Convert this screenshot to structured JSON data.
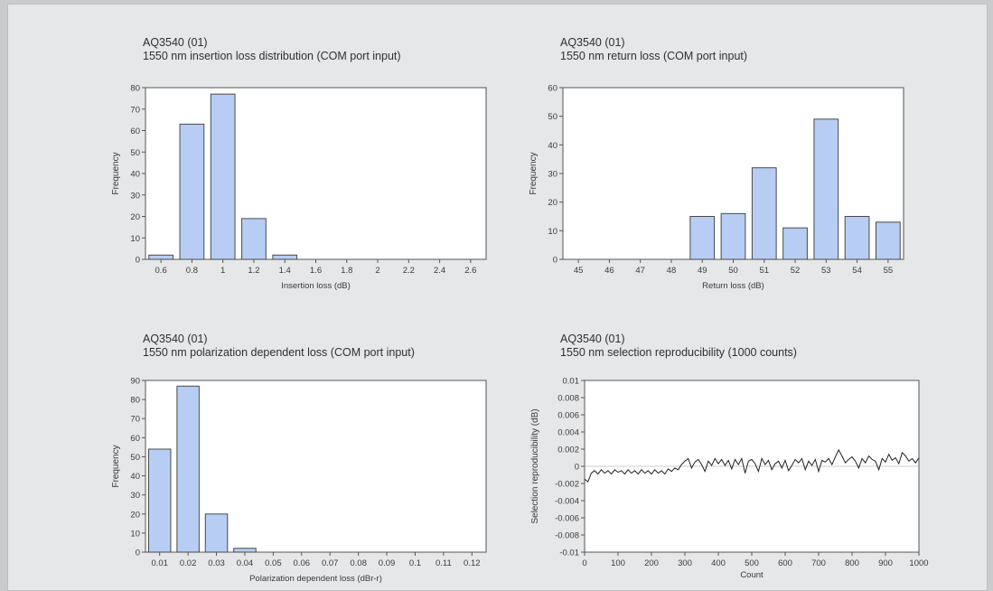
{
  "colors": {
    "bar_fill": "#b7cdf4",
    "bar_stroke": "#4a4a4a",
    "plot_bg": "#ffffff",
    "line": "#222222"
  },
  "chart_data": [
    {
      "type": "bar",
      "header": "AQ3540 (01)",
      "title": "1550 nm insertion loss distribution (COM port input)",
      "xlabel": "Insertion loss (dB)",
      "ylabel": "Frequency",
      "categories": [
        "0.6",
        "0.8",
        "1",
        "1.2",
        "1.4",
        "1.6",
        "1.8",
        "2",
        "2.2",
        "2.4",
        "2.6"
      ],
      "values": [
        2,
        63,
        77,
        19,
        2,
        0,
        0,
        0,
        0,
        0,
        0
      ],
      "ylim": [
        0,
        80
      ],
      "yticks": [
        "0",
        "10",
        "20",
        "30",
        "40",
        "50",
        "60",
        "70",
        "80"
      ],
      "grid": false
    },
    {
      "type": "bar",
      "header": "AQ3540 (01)",
      "title": "1550 nm return loss (COM port input)",
      "xlabel": "Return loss (dB)",
      "ylabel": "Frequency",
      "categories": [
        "45",
        "46",
        "47",
        "48",
        "49",
        "50",
        "51",
        "52",
        "53",
        "54",
        "55"
      ],
      "values": [
        0,
        0,
        0,
        0,
        15,
        16,
        32,
        11,
        49,
        15,
        13
      ],
      "ylim": [
        0,
        60
      ],
      "yticks": [
        "0",
        "10",
        "20",
        "30",
        "40",
        "50",
        "60"
      ],
      "grid": false
    },
    {
      "type": "bar",
      "header": "AQ3540 (01)",
      "title": "1550 nm polarization dependent loss  (COM port input)",
      "xlabel": "Polarization dependent loss (dBr-r)",
      "ylabel": "Frequency",
      "categories": [
        "0.01",
        "0.02",
        "0.03",
        "0.04",
        "0.05",
        "0.06",
        "0.07",
        "0.08",
        "0.09",
        "0.1",
        "0.11",
        "0.12"
      ],
      "values": [
        54,
        87,
        20,
        2,
        0,
        0,
        0,
        0,
        0,
        0,
        0,
        0
      ],
      "ylim": [
        0,
        90
      ],
      "yticks": [
        "0",
        "10",
        "20",
        "30",
        "40",
        "50",
        "60",
        "70",
        "80",
        "90"
      ],
      "grid": false
    },
    {
      "type": "line",
      "header": "AQ3540 (01)",
      "title": "1550 nm selection reproducibility (1000 counts)",
      "xlabel": "Count",
      "ylabel": "Selection reproducibility (dB)",
      "xlim": [
        0,
        1000
      ],
      "ylim": [
        -0.01,
        0.01
      ],
      "xticks": [
        "0",
        "100",
        "200",
        "300",
        "400",
        "500",
        "600",
        "700",
        "800",
        "900",
        "1000"
      ],
      "yticks": [
        "-0.01",
        "-0.008",
        "-0.006",
        "-0.004",
        "-0.002",
        "0",
        "0.002",
        "0.004",
        "0.006",
        "0.008",
        "0.01"
      ],
      "series": [
        {
          "x": [
            0,
            10,
            20,
            30,
            40,
            50,
            60,
            70,
            80,
            90,
            100,
            110,
            120,
            130,
            140,
            150,
            160,
            170,
            180,
            190,
            200,
            210,
            220,
            230,
            240,
            250,
            260,
            270,
            280,
            290,
            300,
            310,
            320,
            330,
            340,
            350,
            360,
            370,
            380,
            390,
            400,
            410,
            420,
            430,
            440,
            450,
            460,
            470,
            480,
            490,
            500,
            510,
            520,
            530,
            540,
            550,
            560,
            570,
            580,
            590,
            600,
            610,
            620,
            630,
            640,
            650,
            660,
            670,
            680,
            690,
            700,
            710,
            720,
            730,
            740,
            750,
            760,
            770,
            780,
            790,
            800,
            810,
            820,
            830,
            840,
            850,
            860,
            870,
            880,
            890,
            900,
            910,
            920,
            930,
            940,
            950,
            960,
            970,
            980,
            990,
            1000
          ],
          "values": [
            -0.0015,
            -0.0018,
            -0.0008,
            -0.0005,
            -0.0009,
            -0.0004,
            -0.0008,
            -0.0005,
            -0.0009,
            -0.0004,
            -0.0007,
            -0.0005,
            -0.0009,
            -0.0004,
            -0.0008,
            -0.0005,
            -0.0009,
            -0.0004,
            -0.0008,
            -0.0005,
            -0.0009,
            -0.0004,
            -0.0008,
            -0.0005,
            -0.0009,
            -0.0003,
            -0.0006,
            -0.0002,
            -0.0004,
            0.0002,
            0.0006,
            0.0009,
            -0.0002,
            0.0005,
            0.0008,
            0.0002,
            -0.0006,
            0.0006,
            0.0001,
            0.0009,
            0.0003,
            0.0008,
            0.0001,
            0.0007,
            -0.0003,
            0.0008,
            0.0002,
            0.0009,
            -0.0008,
            0.0006,
            0.0008,
            0.0003,
            -0.0006,
            0.0009,
            0.0002,
            0.0007,
            -0.0004,
            0.0003,
            0.0006,
            -0.0002,
            0.0007,
            -0.0005,
            0.0001,
            0.0008,
            0.0004,
            0.0009,
            -0.0004,
            0.0006,
            0.0001,
            0.0008,
            -0.0006,
            0.0007,
            0.0005,
            0.0009,
            0.0002,
            0.0011,
            0.0019,
            0.0012,
            0.0004,
            0.0008,
            0.0011,
            0.0006,
            -0.0002,
            0.0009,
            0.0004,
            0.0012,
            0.0008,
            0.0006,
            -0.0004,
            0.0009,
            0.0005,
            0.0014,
            0.0007,
            0.001,
            0.0003,
            0.0016,
            0.0012,
            0.0006,
            0.0009,
            0.0004,
            0.001
          ]
        }
      ],
      "grid": false
    }
  ]
}
